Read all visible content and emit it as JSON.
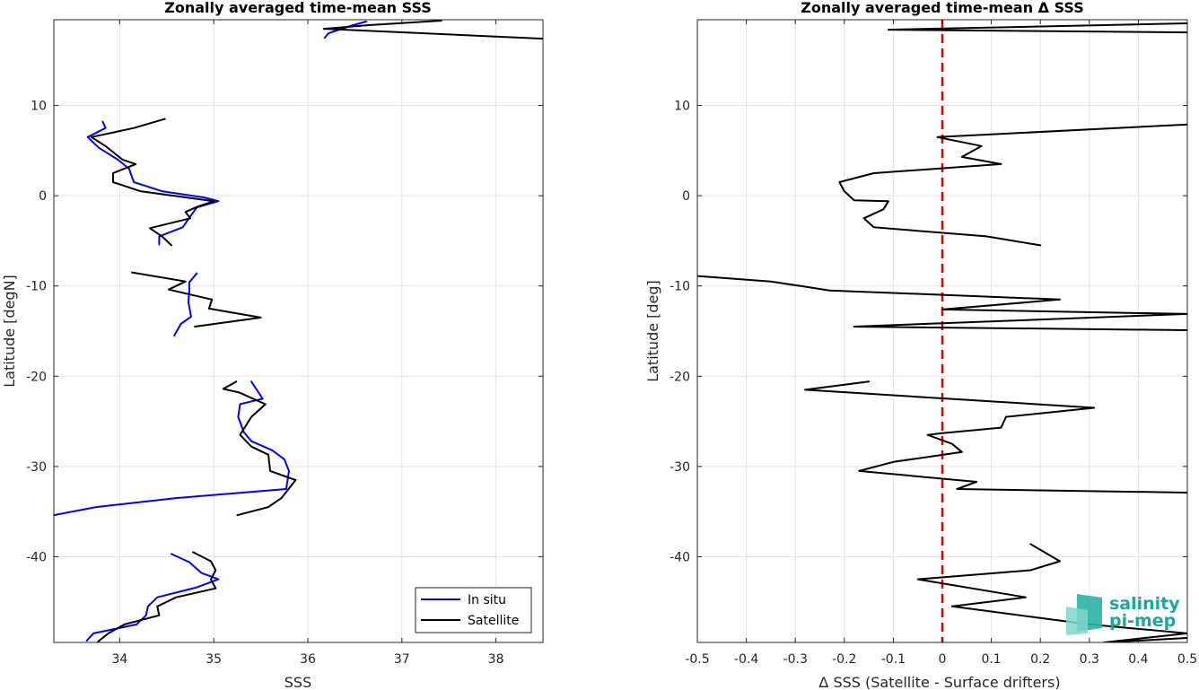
{
  "chart_data": [
    {
      "type": "line",
      "title": "Zonally averaged time-mean SSS",
      "xlabel": "SSS",
      "ylabel": "Latitude [degN]",
      "xlim": [
        33.3,
        38.5
      ],
      "ylim": [
        -49.5,
        19.5
      ],
      "xticks": [
        34,
        35,
        36,
        37,
        38
      ],
      "yticks": [
        -40,
        -30,
        -20,
        -10,
        0,
        10
      ],
      "grid": true,
      "legend": {
        "location": "bottom-right",
        "entries": [
          "In situ",
          "Satellite"
        ]
      },
      "series": [
        {
          "name": "In situ",
          "color": "#0000ff",
          "segments": [
            [
              [
                36.62,
                19.3
              ],
              [
                36.45,
                18.8
              ],
              [
                36.22,
                18.0
              ],
              [
                36.18,
                17.5
              ]
            ],
            [
              [
                33.82,
                8.2
              ],
              [
                33.85,
                7.5
              ],
              [
                33.66,
                6.5
              ],
              [
                33.78,
                5.3
              ],
              [
                33.98,
                4.0
              ],
              [
                34.1,
                3.0
              ],
              [
                34.15,
                1.5
              ],
              [
                34.45,
                0.5
              ],
              [
                34.9,
                -0.2
              ],
              [
                35.05,
                -0.6
              ],
              [
                34.82,
                -1.3
              ],
              [
                34.75,
                -2.3
              ],
              [
                34.67,
                -3.5
              ],
              [
                34.42,
                -4.5
              ],
              [
                34.42,
                -5.4
              ]
            ],
            [
              [
                34.82,
                -8.6
              ],
              [
                34.74,
                -9.6
              ],
              [
                34.74,
                -10.6
              ],
              [
                34.73,
                -11.8
              ],
              [
                34.76,
                -13.4
              ],
              [
                34.65,
                -14.2
              ],
              [
                34.58,
                -15.5
              ]
            ],
            [
              [
                35.4,
                -20.6
              ],
              [
                35.52,
                -22.5
              ],
              [
                35.28,
                -23.1
              ],
              [
                35.26,
                -24.5
              ],
              [
                35.32,
                -26.2
              ],
              [
                35.4,
                -27.2
              ],
              [
                35.62,
                -28.2
              ],
              [
                35.75,
                -29.2
              ],
              [
                35.8,
                -30.5
              ],
              [
                35.77,
                -32.5
              ],
              [
                34.6,
                -33.5
              ],
              [
                33.75,
                -34.5
              ],
              [
                33.3,
                -35.4
              ]
            ],
            [
              [
                34.55,
                -39.7
              ],
              [
                34.74,
                -40.6
              ],
              [
                34.87,
                -41.8
              ],
              [
                35.05,
                -42.5
              ],
              [
                34.82,
                -43.4
              ],
              [
                34.4,
                -44.5
              ],
              [
                34.3,
                -45.5
              ],
              [
                34.28,
                -46.5
              ],
              [
                34.18,
                -47.5
              ],
              [
                33.72,
                -48.5
              ],
              [
                33.65,
                -49.3
              ]
            ]
          ]
        },
        {
          "name": "Satellite",
          "color": "#000000",
          "segments": [
            [
              [
                37.42,
                19.4
              ],
              [
                36.65,
                18.9
              ],
              [
                36.17,
                18.5
              ],
              [
                38.5,
                17.4
              ]
            ],
            [
              [
                34.48,
                8.5
              ],
              [
                34.15,
                7.5
              ],
              [
                33.7,
                6.5
              ],
              [
                33.85,
                5.5
              ],
              [
                34.03,
                4.0
              ],
              [
                34.17,
                3.5
              ],
              [
                33.93,
                2.5
              ],
              [
                33.93,
                1.5
              ],
              [
                34.22,
                0.5
              ],
              [
                35.0,
                -0.6
              ],
              [
                34.83,
                -1.2
              ],
              [
                34.7,
                -1.8
              ],
              [
                34.75,
                -2.5
              ],
              [
                34.32,
                -3.6
              ],
              [
                34.45,
                -4.5
              ],
              [
                34.55,
                -5.5
              ]
            ],
            [
              [
                34.13,
                -8.5
              ],
              [
                34.7,
                -9.5
              ],
              [
                34.52,
                -10.4
              ],
              [
                34.98,
                -11.5
              ],
              [
                34.95,
                -12.5
              ],
              [
                35.5,
                -13.5
              ],
              [
                34.8,
                -14.5
              ]
            ],
            [
              [
                35.24,
                -20.6
              ],
              [
                35.1,
                -21.4
              ],
              [
                35.27,
                -21.8
              ],
              [
                35.55,
                -23.1
              ],
              [
                35.4,
                -24.5
              ],
              [
                35.28,
                -26.5
              ],
              [
                35.4,
                -27.8
              ],
              [
                35.58,
                -28.7
              ],
              [
                35.6,
                -30.5
              ],
              [
                35.87,
                -31.5
              ],
              [
                35.72,
                -33.5
              ],
              [
                35.58,
                -34.5
              ],
              [
                35.25,
                -35.4
              ]
            ],
            [
              [
                34.78,
                -39.5
              ],
              [
                34.97,
                -40.5
              ],
              [
                35.02,
                -41.5
              ],
              [
                34.97,
                -42.5
              ],
              [
                35.02,
                -43.5
              ],
              [
                34.6,
                -44.5
              ],
              [
                34.4,
                -45.5
              ],
              [
                34.42,
                -46.5
              ],
              [
                34.05,
                -47.5
              ],
              [
                33.88,
                -48.5
              ],
              [
                33.77,
                -49.4
              ]
            ]
          ]
        }
      ]
    },
    {
      "type": "line",
      "title": "Zonally averaged time-mean Δ SSS",
      "xlabel": "Δ SSS (Satellite - Surface drifters)",
      "ylabel": "Latitude [deg]",
      "xlim": [
        -0.5,
        0.5
      ],
      "ylim": [
        -49.5,
        19.5
      ],
      "xticks": [
        -0.5,
        -0.4,
        -0.3,
        -0.2,
        -0.1,
        0,
        0.1,
        0.2,
        0.3,
        0.4,
        0.5
      ],
      "yticks": [
        -40,
        -30,
        -20,
        -10,
        0,
        10
      ],
      "grid": true,
      "reference_line": {
        "x": 0,
        "style": "dashed",
        "color": "#e60000"
      },
      "series": [
        {
          "color": "#000000",
          "segments": [
            [
              [
                0.5,
                19.1
              ],
              [
                -0.11,
                18.4
              ],
              [
                0.5,
                18.1
              ]
            ],
            [
              [
                0.5,
                7.9
              ],
              [
                -0.01,
                6.5
              ],
              [
                0.08,
                5.5
              ],
              [
                0.04,
                4.3
              ],
              [
                0.12,
                3.5
              ],
              [
                -0.14,
                2.5
              ],
              [
                -0.21,
                1.5
              ],
              [
                -0.2,
                0.5
              ],
              [
                -0.18,
                -0.5
              ],
              [
                -0.11,
                -0.6
              ],
              [
                -0.12,
                -1.5
              ],
              [
                -0.16,
                -2.5
              ],
              [
                -0.14,
                -3.5
              ],
              [
                0.09,
                -4.5
              ],
              [
                0.2,
                -5.5
              ]
            ],
            [
              [
                -0.5,
                -8.9
              ],
              [
                -0.35,
                -9.5
              ],
              [
                -0.23,
                -10.5
              ],
              [
                0.24,
                -11.5
              ],
              [
                0.0,
                -12.6
              ],
              [
                0.5,
                -13.1
              ],
              [
                -0.18,
                -14.5
              ],
              [
                0.5,
                -14.9
              ]
            ],
            [
              [
                -0.15,
                -20.6
              ],
              [
                -0.28,
                -21.5
              ],
              [
                0.31,
                -23.5
              ],
              [
                0.13,
                -24.5
              ],
              [
                0.12,
                -25.7
              ],
              [
                0.0,
                -26.3
              ],
              [
                -0.03,
                -26.5
              ],
              [
                0.02,
                -27.5
              ],
              [
                0.04,
                -28.4
              ],
              [
                -0.1,
                -29.5
              ],
              [
                -0.17,
                -30.5
              ],
              [
                0.07,
                -31.7
              ],
              [
                0.03,
                -32.5
              ],
              [
                0.5,
                -32.9
              ]
            ],
            [
              [
                0.18,
                -38.6
              ],
              [
                0.24,
                -40.5
              ],
              [
                0.18,
                -41.5
              ],
              [
                -0.05,
                -42.5
              ],
              [
                0.17,
                -44.5
              ],
              [
                0.02,
                -45.5
              ],
              [
                0.3,
                -47.5
              ],
              [
                0.5,
                -48.5
              ],
              [
                0.33,
                -49.5
              ],
              [
                0.5,
                -49.0
              ]
            ]
          ]
        }
      ]
    }
  ],
  "logo": {
    "line1": "salinity",
    "line2": "pi-mep"
  }
}
